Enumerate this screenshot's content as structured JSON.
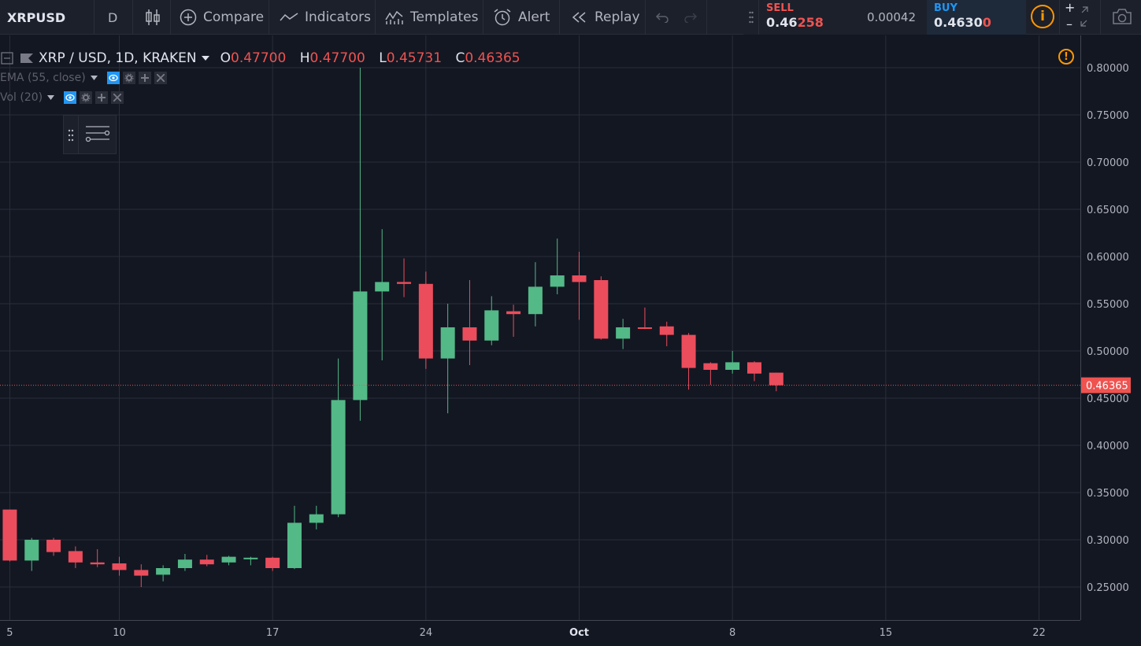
{
  "toolbar": {
    "symbol": "XRPUSD",
    "interval": "D",
    "compare_label": "Compare",
    "indicators_label": "Indicators",
    "templates_label": "Templates",
    "alert_label": "Alert",
    "replay_label": "Replay",
    "sell_label": "SELL",
    "sell_price_main": "0.46",
    "sell_price_hi": "258",
    "spread": "0.00042",
    "buy_label": "BUY",
    "buy_price_main": "0.4630",
    "buy_price_hi": "0",
    "info_icon": "i",
    "zoom_in": "+",
    "zoom_out": "–"
  },
  "legend": {
    "title": "XRP / USD, 1D, KRAKEN",
    "o_label": "O",
    "o_value": "0.47700",
    "h_label": "H",
    "h_value": "0.47700",
    "l_label": "L",
    "l_value": "0.45731",
    "c_label": "C",
    "c_value": "0.46365",
    "study_ema": "EMA (55, close)",
    "study_vol": "Vol (20)",
    "warning_icon": "!"
  },
  "colors": {
    "background": "#131722",
    "up": "#53b987",
    "down": "#eb4d5c",
    "grid": "#2a2e39",
    "last_price": "#ef5350"
  },
  "chart_data": {
    "type": "candlestick",
    "title": "XRP / USD, 1D, KRAKEN",
    "xlabel": "",
    "ylabel": "",
    "ylim": [
      0.21,
      0.82
    ],
    "yticks": [
      "0.80000",
      "0.75000",
      "0.70000",
      "0.65000",
      "0.60000",
      "0.55000",
      "0.50000",
      "0.45000",
      "0.40000",
      "0.35000",
      "0.30000",
      "0.25000"
    ],
    "ytick_values": [
      0.8,
      0.75,
      0.7,
      0.65,
      0.6,
      0.55,
      0.5,
      0.45,
      0.4,
      0.35,
      0.3,
      0.25
    ],
    "xticks": [
      {
        "label": "5",
        "day": -2
      },
      {
        "label": "10",
        "day": 3
      },
      {
        "label": "17",
        "day": 10
      },
      {
        "label": "24",
        "day": 17
      },
      {
        "label": "Oct",
        "day": 24
      },
      {
        "label": "8",
        "day": 31
      },
      {
        "label": "15",
        "day": 38
      },
      {
        "label": "22",
        "day": 45
      }
    ],
    "last_price": 0.46365,
    "last_price_label": "0.46365",
    "grid": true,
    "candles": [
      {
        "day": -2,
        "o": 0.332,
        "h": 0.332,
        "l": 0.277,
        "c": 0.278
      },
      {
        "day": -1,
        "o": 0.278,
        "h": 0.302,
        "l": 0.267,
        "c": 0.3
      },
      {
        "day": 0,
        "o": 0.3,
        "h": 0.302,
        "l": 0.283,
        "c": 0.287
      },
      {
        "day": 1,
        "o": 0.288,
        "h": 0.293,
        "l": 0.27,
        "c": 0.276
      },
      {
        "day": 2,
        "o": 0.276,
        "h": 0.29,
        "l": 0.271,
        "c": 0.274
      },
      {
        "day": 3,
        "o": 0.275,
        "h": 0.282,
        "l": 0.262,
        "c": 0.268
      },
      {
        "day": 4,
        "o": 0.268,
        "h": 0.274,
        "l": 0.25,
        "c": 0.262
      },
      {
        "day": 5,
        "o": 0.263,
        "h": 0.273,
        "l": 0.256,
        "c": 0.27
      },
      {
        "day": 6,
        "o": 0.27,
        "h": 0.285,
        "l": 0.267,
        "c": 0.279
      },
      {
        "day": 7,
        "o": 0.279,
        "h": 0.284,
        "l": 0.272,
        "c": 0.274
      },
      {
        "day": 8,
        "o": 0.276,
        "h": 0.283,
        "l": 0.273,
        "c": 0.282
      },
      {
        "day": 9,
        "o": 0.28,
        "h": 0.282,
        "l": 0.273,
        "c": 0.281
      },
      {
        "day": 10,
        "o": 0.281,
        "h": 0.282,
        "l": 0.267,
        "c": 0.27
      },
      {
        "day": 11,
        "o": 0.27,
        "h": 0.336,
        "l": 0.269,
        "c": 0.318
      },
      {
        "day": 12,
        "o": 0.318,
        "h": 0.336,
        "l": 0.311,
        "c": 0.327
      },
      {
        "day": 13,
        "o": 0.327,
        "h": 0.492,
        "l": 0.324,
        "c": 0.448
      },
      {
        "day": 14,
        "o": 0.448,
        "h": 0.8,
        "l": 0.426,
        "c": 0.563
      },
      {
        "day": 15,
        "o": 0.563,
        "h": 0.629,
        "l": 0.49,
        "c": 0.573
      },
      {
        "day": 16,
        "o": 0.573,
        "h": 0.598,
        "l": 0.557,
        "c": 0.571
      },
      {
        "day": 17,
        "o": 0.571,
        "h": 0.584,
        "l": 0.481,
        "c": 0.492
      },
      {
        "day": 18,
        "o": 0.492,
        "h": 0.55,
        "l": 0.434,
        "c": 0.525
      },
      {
        "day": 19,
        "o": 0.525,
        "h": 0.575,
        "l": 0.485,
        "c": 0.511
      },
      {
        "day": 20,
        "o": 0.511,
        "h": 0.558,
        "l": 0.506,
        "c": 0.543
      },
      {
        "day": 21,
        "o": 0.542,
        "h": 0.549,
        "l": 0.515,
        "c": 0.539
      },
      {
        "day": 22,
        "o": 0.539,
        "h": 0.594,
        "l": 0.526,
        "c": 0.568
      },
      {
        "day": 23,
        "o": 0.568,
        "h": 0.619,
        "l": 0.56,
        "c": 0.58
      },
      {
        "day": 24,
        "o": 0.58,
        "h": 0.605,
        "l": 0.533,
        "c": 0.573
      },
      {
        "day": 25,
        "o": 0.575,
        "h": 0.579,
        "l": 0.512,
        "c": 0.513
      },
      {
        "day": 26,
        "o": 0.513,
        "h": 0.534,
        "l": 0.502,
        "c": 0.525
      },
      {
        "day": 27,
        "o": 0.525,
        "h": 0.546,
        "l": 0.523,
        "c": 0.524
      },
      {
        "day": 28,
        "o": 0.526,
        "h": 0.531,
        "l": 0.505,
        "c": 0.517
      },
      {
        "day": 29,
        "o": 0.517,
        "h": 0.519,
        "l": 0.459,
        "c": 0.482
      },
      {
        "day": 30,
        "o": 0.487,
        "h": 0.488,
        "l": 0.464,
        "c": 0.48
      },
      {
        "day": 31,
        "o": 0.48,
        "h": 0.5,
        "l": 0.476,
        "c": 0.488
      },
      {
        "day": 32,
        "o": 0.488,
        "h": 0.489,
        "l": 0.468,
        "c": 0.476
      },
      {
        "day": 33,
        "o": 0.477,
        "h": 0.477,
        "l": 0.45731,
        "c": 0.46365
      }
    ]
  }
}
